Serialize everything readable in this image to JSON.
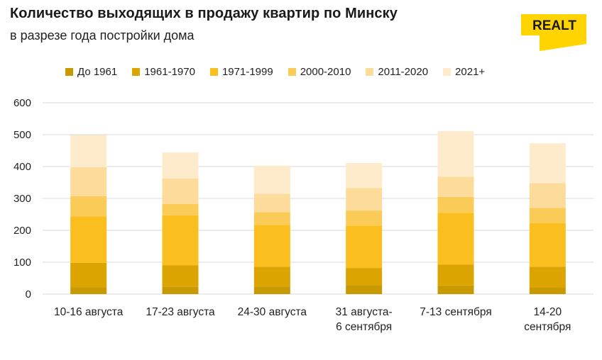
{
  "header": {
    "title": "Количество выходящих в продажу квартир по Минску",
    "subtitle": "в разрезе года постройки дома"
  },
  "logo": {
    "text": "REALT",
    "color": "#FFD400",
    "text_color": "#1a1a1a",
    "icon": "realt-logo"
  },
  "colors": [
    "#C89A00",
    "#DCA400",
    "#FBBE1F",
    "#FBCB57",
    "#FDDC9B",
    "#FEEBCB"
  ],
  "chart_data": {
    "type": "bar",
    "stacked": true,
    "title": "Количество выходящих в продажу квартир по Минску",
    "subtitle": "в разрезе года постройки дома",
    "categories": [
      [
        "10-16 августа"
      ],
      [
        "17-23 августа"
      ],
      [
        "24-30 августа"
      ],
      [
        "31 августа-",
        "6 сентября"
      ],
      [
        "7-13 сентября"
      ],
      [
        "14-20",
        "сентября"
      ]
    ],
    "series": [
      {
        "name": "До 1961",
        "color": "#C89A00",
        "values": [
          22,
          23,
          24,
          28,
          27,
          20
        ]
      },
      {
        "name": "1961-1970",
        "color": "#DCA400",
        "values": [
          76,
          67,
          62,
          54,
          66,
          66
        ]
      },
      {
        "name": "1971-1999",
        "color": "#FBBE1F",
        "values": [
          146,
          157,
          131,
          133,
          162,
          137
        ]
      },
      {
        "name": "2000-2010",
        "color": "#FBCB57",
        "values": [
          63,
          36,
          40,
          47,
          50,
          47
        ]
      },
      {
        "name": "2011-2020",
        "color": "#FDDC9B",
        "values": [
          91,
          80,
          58,
          71,
          63,
          78
        ]
      },
      {
        "name": "2021+",
        "color": "#FEEBCB",
        "values": [
          101,
          81,
          88,
          78,
          143,
          125
        ]
      }
    ],
    "ylim": [
      0,
      600
    ],
    "yticks": [
      0,
      100,
      200,
      300,
      400,
      500,
      600
    ],
    "grid": true,
    "legend": "top"
  }
}
